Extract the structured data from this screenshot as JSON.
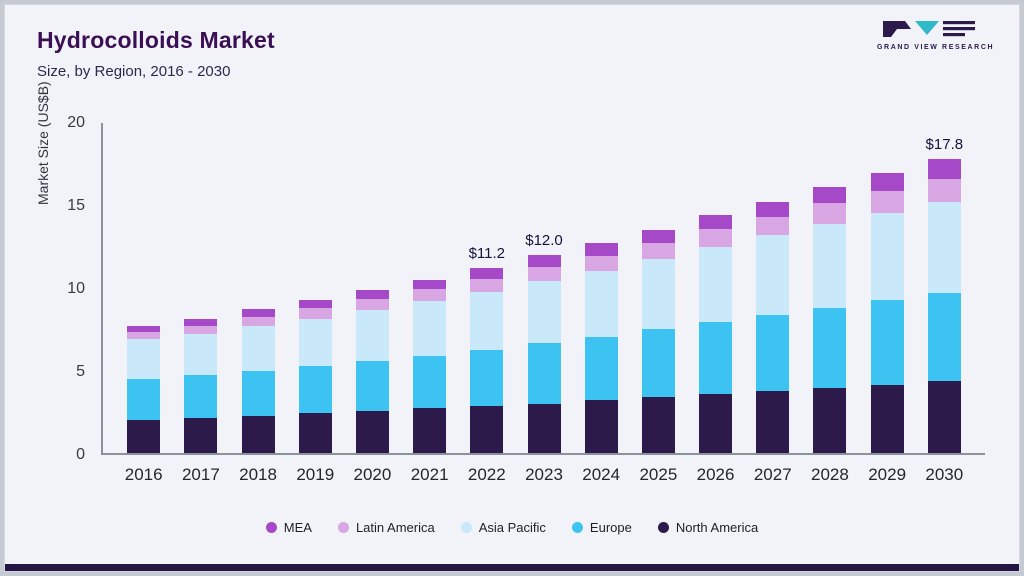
{
  "header": {
    "title": "Hydrocolloids Market",
    "subtitle": "Size, by Region, 2016 - 2030",
    "logo_text": "GRAND VIEW RESEARCH"
  },
  "colors": {
    "card_background": "#f1f3f8",
    "title_text": "#3b0f54",
    "bottom_strip": "#241544",
    "axis_line": "#8b919c",
    "logo_teal": "#2fb9c9",
    "logo_dark": "#2b1a4a"
  },
  "chart_data": {
    "type": "bar",
    "stacked": true,
    "title": "Hydrocolloids Market Size, by Region, 2016 - 2030",
    "ylabel": "Market Size (US$B)",
    "ylim": [
      0,
      20
    ],
    "yticks": [
      0,
      5,
      10,
      15,
      20
    ],
    "grid": false,
    "legend_position": "bottom",
    "categories": [
      2016,
      2017,
      2018,
      2019,
      2020,
      2021,
      2022,
      2023,
      2024,
      2025,
      2026,
      2027,
      2028,
      2029,
      2030
    ],
    "series": [
      {
        "name": "North America",
        "color": "#2b1a4a",
        "values": [
          2.0,
          2.1,
          2.25,
          2.4,
          2.55,
          2.7,
          2.85,
          3.0,
          3.2,
          3.4,
          3.6,
          3.75,
          3.95,
          4.15,
          4.35
        ]
      },
      {
        "name": "Europe",
        "color": "#3cc3f1",
        "values": [
          2.5,
          2.6,
          2.75,
          2.9,
          3.0,
          3.2,
          3.4,
          3.65,
          3.85,
          4.1,
          4.35,
          4.6,
          4.85,
          5.1,
          5.35
        ]
      },
      {
        "name": "Asia Pacific",
        "color": "#c9e9fa",
        "values": [
          2.4,
          2.5,
          2.7,
          2.85,
          3.1,
          3.3,
          3.5,
          3.8,
          4.0,
          4.25,
          4.55,
          4.85,
          5.1,
          5.3,
          5.5
        ]
      },
      {
        "name": "Latin America",
        "color": "#d7a6e3",
        "values": [
          0.45,
          0.5,
          0.55,
          0.65,
          0.7,
          0.72,
          0.8,
          0.85,
          0.9,
          0.95,
          1.05,
          1.1,
          1.25,
          1.35,
          1.4
        ]
      },
      {
        "name": "MEA",
        "color": "#a649c8",
        "values": [
          0.35,
          0.4,
          0.45,
          0.5,
          0.55,
          0.58,
          0.65,
          0.7,
          0.75,
          0.8,
          0.85,
          0.9,
          0.95,
          1.1,
          1.2
        ]
      }
    ],
    "totals": [
      7.7,
      8.1,
      8.7,
      9.3,
      9.9,
      10.5,
      11.2,
      12.0,
      12.7,
      13.5,
      14.4,
      15.2,
      16.1,
      17.0,
      17.8
    ],
    "annotations": [
      {
        "category": 2022,
        "text": "$11.2"
      },
      {
        "category": 2023,
        "text": "$12.0"
      },
      {
        "category": 2030,
        "text": "$17.8"
      }
    ],
    "legend": [
      "MEA",
      "Latin America",
      "Asia Pacific",
      "Europe",
      "North America"
    ]
  }
}
